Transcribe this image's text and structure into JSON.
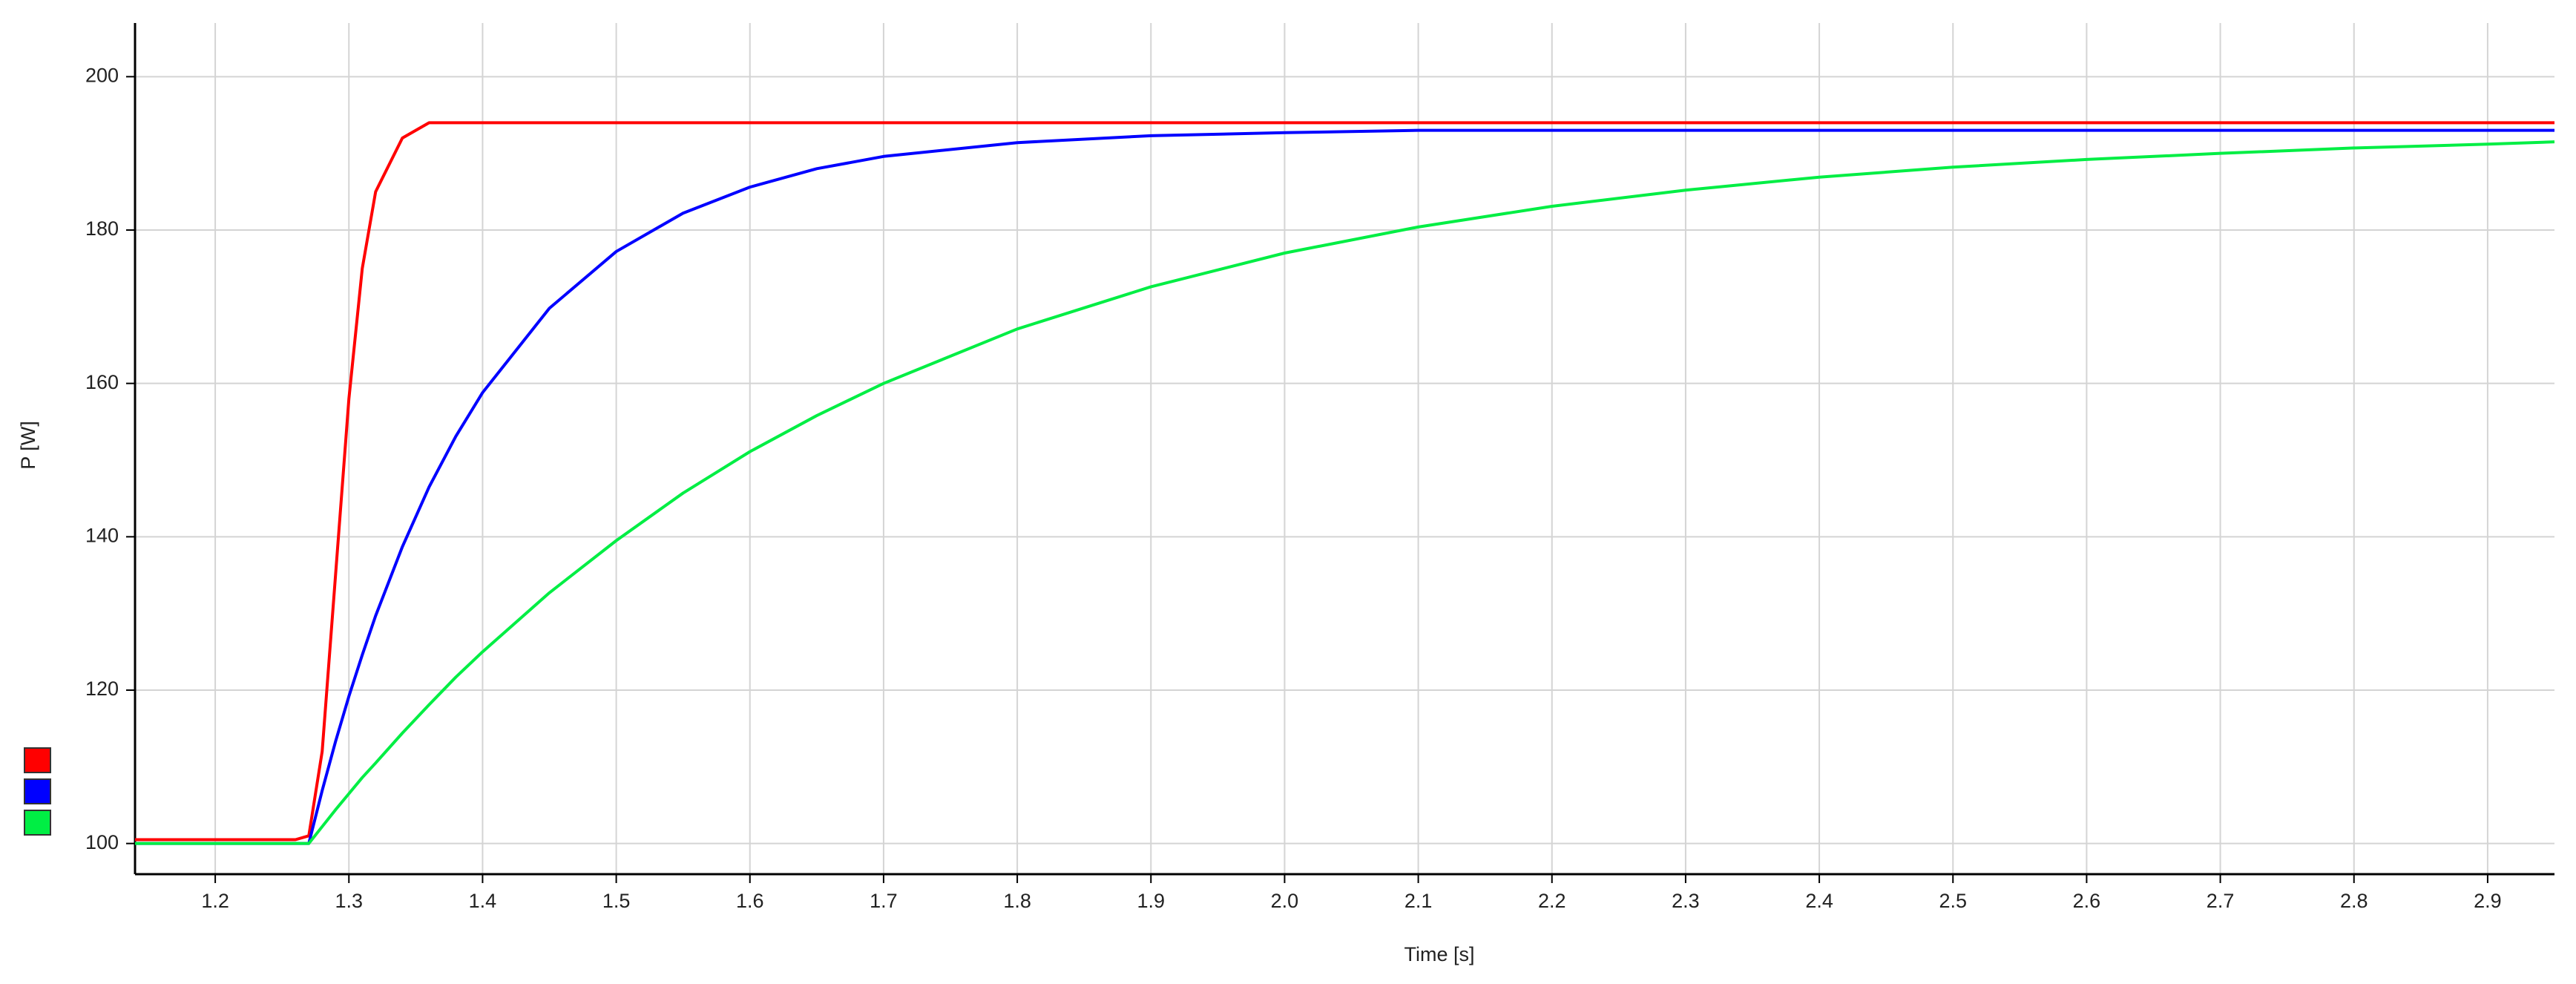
{
  "chart_data": {
    "type": "line",
    "x_label": "Time [s]",
    "y_label": "P [W]",
    "x": [
      1.14,
      1.18,
      1.22,
      1.26,
      1.27,
      1.28,
      1.29,
      1.3,
      1.31,
      1.32,
      1.34,
      1.36,
      1.38,
      1.4,
      1.45,
      1.5,
      1.55,
      1.6,
      1.65,
      1.7,
      1.8,
      1.9,
      2.0,
      2.1,
      2.2,
      2.3,
      2.4,
      2.5,
      2.6,
      2.7,
      2.8,
      2.9,
      2.95
    ],
    "series": [
      {
        "color": "#ff0000",
        "values": [
          100.5,
          100.5,
          100.5,
          100.5,
          101,
          112,
          135,
          158,
          175,
          185,
          192,
          194,
          194,
          194,
          194,
          194,
          194,
          194,
          194,
          194,
          194,
          194,
          194,
          194,
          194,
          194,
          194,
          194,
          194,
          194,
          194,
          194,
          194
        ]
      },
      {
        "color": "#0000ff",
        "values": [
          100,
          100,
          100,
          100,
          100,
          106.9,
          113.3,
          119.2,
          124.6,
          129.7,
          138.7,
          146.5,
          153.1,
          158.8,
          169.8,
          177.2,
          182.2,
          185.6,
          188,
          189.6,
          191.4,
          192.3,
          192.7,
          193,
          193,
          193,
          193,
          193,
          193,
          193,
          193,
          193,
          193
        ]
      },
      {
        "color": "#00ee44",
        "values": [
          100,
          100,
          100,
          100,
          100,
          102.2,
          104.4,
          106.5,
          108.6,
          110.5,
          114.4,
          118.1,
          121.7,
          125,
          132.7,
          139.5,
          145.7,
          151.1,
          155.8,
          160,
          167.1,
          172.6,
          177,
          180.4,
          183.1,
          185.2,
          186.9,
          188.2,
          189.2,
          190,
          190.7,
          191.2,
          191.5
        ]
      }
    ],
    "xlim": [
      1.14,
      2.95
    ],
    "ylim": [
      96,
      207
    ],
    "xticks": [
      1.2,
      1.3,
      1.4,
      1.5,
      1.6,
      1.7,
      1.8,
      1.9,
      {
        "value": 2,
        "label": "2.0"
      },
      2.1,
      2.2,
      2.3,
      2.4,
      2.5,
      2.6,
      2.7,
      2.8,
      2.9
    ],
    "yticks": [
      100,
      120,
      140,
      160,
      180,
      200
    ],
    "grid": true
  }
}
